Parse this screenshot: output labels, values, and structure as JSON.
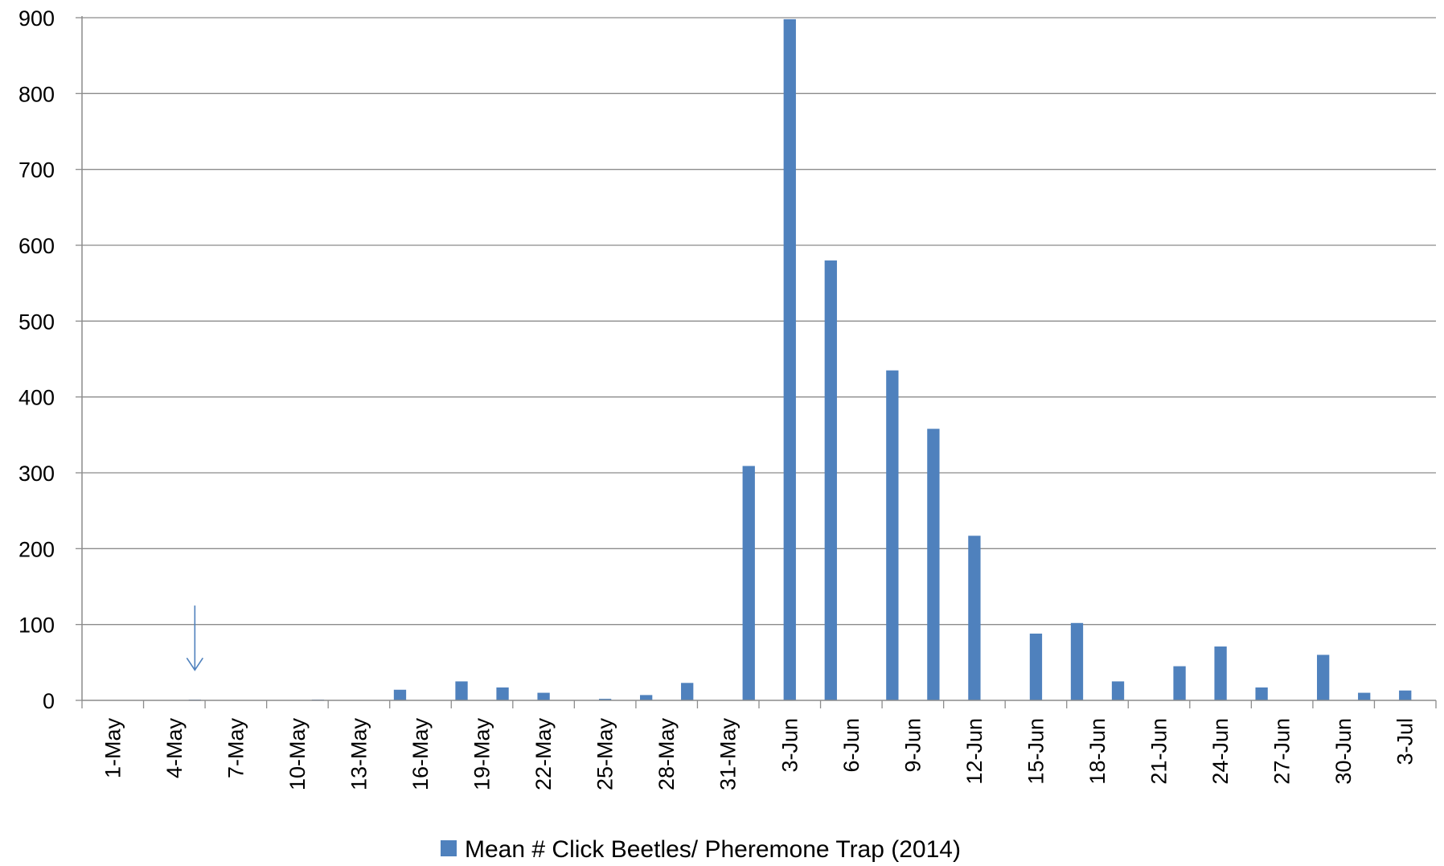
{
  "chart_data": {
    "type": "bar",
    "x_type": "date",
    "x_start": "2014-05-01",
    "x_end": "2014-07-06",
    "ylim": [
      0,
      900
    ],
    "y_ticks": [
      0,
      100,
      200,
      300,
      400,
      500,
      600,
      700,
      800,
      900
    ],
    "x_tick_labels": [
      "1-May",
      "4-May",
      "7-May",
      "10-May",
      "13-May",
      "16-May",
      "19-May",
      "22-May",
      "25-May",
      "28-May",
      "31-May",
      "3-Jun",
      "6-Jun",
      "9-Jun",
      "12-Jun",
      "15-Jun",
      "18-Jun",
      "21-Jun",
      "24-Jun",
      "27-Jun",
      "30-Jun",
      "3-Jul"
    ],
    "grid": "horizontal",
    "legend_position": "bottom",
    "series": [
      {
        "name": "Mean # Click Beetles/ Pheremone Trap (2014)",
        "color": "#4f81bd",
        "points": [
          {
            "x": "2014-05-06",
            "y": 1
          },
          {
            "x": "2014-05-12",
            "y": 1
          },
          {
            "x": "2014-05-16",
            "y": 14
          },
          {
            "x": "2014-05-19",
            "y": 25
          },
          {
            "x": "2014-05-21",
            "y": 17
          },
          {
            "x": "2014-05-23",
            "y": 10
          },
          {
            "x": "2014-05-26",
            "y": 2
          },
          {
            "x": "2014-05-28",
            "y": 7
          },
          {
            "x": "2014-05-30",
            "y": 23
          },
          {
            "x": "2014-06-02",
            "y": 309
          },
          {
            "x": "2014-06-04",
            "y": 898
          },
          {
            "x": "2014-06-06",
            "y": 580
          },
          {
            "x": "2014-06-09",
            "y": 435
          },
          {
            "x": "2014-06-11",
            "y": 358
          },
          {
            "x": "2014-06-13",
            "y": 217
          },
          {
            "x": "2014-06-16",
            "y": 88
          },
          {
            "x": "2014-06-18",
            "y": 102
          },
          {
            "x": "2014-06-20",
            "y": 25
          },
          {
            "x": "2014-06-23",
            "y": 45
          },
          {
            "x": "2014-06-25",
            "y": 71
          },
          {
            "x": "2014-06-27",
            "y": 17
          },
          {
            "x": "2014-06-30",
            "y": 60
          },
          {
            "x": "2014-07-02",
            "y": 10
          },
          {
            "x": "2014-07-04",
            "y": 13
          }
        ]
      }
    ],
    "annotations": [
      {
        "type": "arrow-down",
        "x": "2014-05-06",
        "y_from": 125,
        "y_to": 40,
        "color": "#4f81bd"
      }
    ]
  }
}
